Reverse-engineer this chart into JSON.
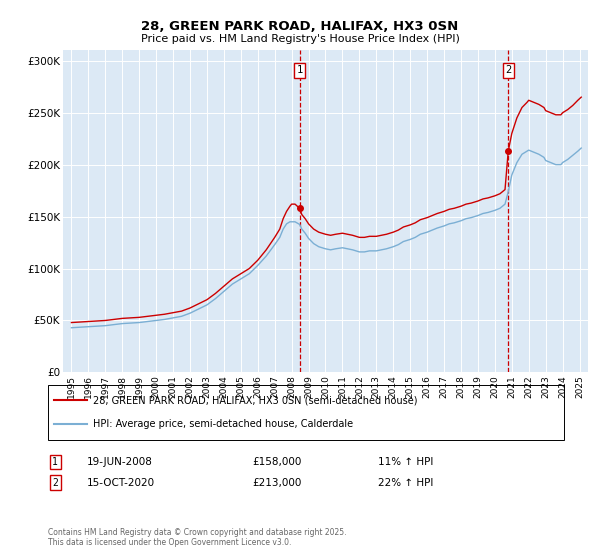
{
  "title": "28, GREEN PARK ROAD, HALIFAX, HX3 0SN",
  "subtitle": "Price paid vs. HM Land Registry's House Price Index (HPI)",
  "ylabel_ticks": [
    "£0",
    "£50K",
    "£100K",
    "£150K",
    "£200K",
    "£250K",
    "£300K"
  ],
  "ytick_values": [
    0,
    50000,
    100000,
    150000,
    200000,
    250000,
    300000
  ],
  "ylim": [
    0,
    310000
  ],
  "xlim_start": 1994.5,
  "xlim_end": 2025.5,
  "xtick_years": [
    1995,
    1996,
    1997,
    1998,
    1999,
    2000,
    2001,
    2002,
    2003,
    2004,
    2005,
    2006,
    2007,
    2008,
    2009,
    2010,
    2011,
    2012,
    2013,
    2014,
    2015,
    2016,
    2017,
    2018,
    2019,
    2020,
    2021,
    2022,
    2023,
    2024,
    2025
  ],
  "bg_color": "#dce9f5",
  "fig_bg": "#ffffff",
  "red_color": "#cc0000",
  "blue_color": "#7bafd4",
  "vline1_x": 2008.47,
  "vline2_x": 2020.79,
  "legend_line1": "28, GREEN PARK ROAD, HALIFAX, HX3 0SN (semi-detached house)",
  "legend_line2": "HPI: Average price, semi-detached house, Calderdale",
  "ann1_index": "1",
  "ann1_date": "19-JUN-2008",
  "ann1_price": "£158,000",
  "ann1_hpi": "11% ↑ HPI",
  "ann2_index": "2",
  "ann2_date": "15-OCT-2020",
  "ann2_price": "£213,000",
  "ann2_hpi": "22% ↑ HPI",
  "copyright_text": "Contains HM Land Registry data © Crown copyright and database right 2025.\nThis data is licensed under the Open Government Licence v3.0.",
  "red_series": [
    [
      1995.0,
      48000
    ],
    [
      1995.5,
      48500
    ],
    [
      1996.0,
      49000
    ],
    [
      1996.5,
      49500
    ],
    [
      1997.0,
      50000
    ],
    [
      1997.5,
      51000
    ],
    [
      1998.0,
      52000
    ],
    [
      1998.5,
      52500
    ],
    [
      1999.0,
      53000
    ],
    [
      1999.5,
      54000
    ],
    [
      2000.0,
      55000
    ],
    [
      2000.5,
      56000
    ],
    [
      2001.0,
      57500
    ],
    [
      2001.5,
      59000
    ],
    [
      2002.0,
      62000
    ],
    [
      2002.5,
      66000
    ],
    [
      2003.0,
      70000
    ],
    [
      2003.5,
      76000
    ],
    [
      2004.0,
      83000
    ],
    [
      2004.5,
      90000
    ],
    [
      2005.0,
      95000
    ],
    [
      2005.5,
      100000
    ],
    [
      2006.0,
      108000
    ],
    [
      2006.5,
      118000
    ],
    [
      2007.0,
      130000
    ],
    [
      2007.3,
      138000
    ],
    [
      2007.5,
      148000
    ],
    [
      2007.7,
      155000
    ],
    [
      2007.9,
      160000
    ],
    [
      2008.0,
      162000
    ],
    [
      2008.2,
      162000
    ],
    [
      2008.47,
      158000
    ],
    [
      2008.6,
      152000
    ],
    [
      2008.8,
      148000
    ],
    [
      2009.0,
      143000
    ],
    [
      2009.3,
      138000
    ],
    [
      2009.6,
      135000
    ],
    [
      2010.0,
      133000
    ],
    [
      2010.3,
      132000
    ],
    [
      2010.6,
      133000
    ],
    [
      2011.0,
      134000
    ],
    [
      2011.3,
      133000
    ],
    [
      2011.6,
      132000
    ],
    [
      2012.0,
      130000
    ],
    [
      2012.3,
      130000
    ],
    [
      2012.6,
      131000
    ],
    [
      2013.0,
      131000
    ],
    [
      2013.3,
      132000
    ],
    [
      2013.6,
      133000
    ],
    [
      2014.0,
      135000
    ],
    [
      2014.3,
      137000
    ],
    [
      2014.6,
      140000
    ],
    [
      2015.0,
      142000
    ],
    [
      2015.3,
      144000
    ],
    [
      2015.6,
      147000
    ],
    [
      2016.0,
      149000
    ],
    [
      2016.3,
      151000
    ],
    [
      2016.6,
      153000
    ],
    [
      2017.0,
      155000
    ],
    [
      2017.3,
      157000
    ],
    [
      2017.6,
      158000
    ],
    [
      2018.0,
      160000
    ],
    [
      2018.3,
      162000
    ],
    [
      2018.6,
      163000
    ],
    [
      2019.0,
      165000
    ],
    [
      2019.3,
      167000
    ],
    [
      2019.6,
      168000
    ],
    [
      2020.0,
      170000
    ],
    [
      2020.3,
      172000
    ],
    [
      2020.6,
      176000
    ],
    [
      2020.79,
      213000
    ],
    [
      2021.0,
      230000
    ],
    [
      2021.3,
      245000
    ],
    [
      2021.6,
      255000
    ],
    [
      2021.9,
      260000
    ],
    [
      2022.0,
      262000
    ],
    [
      2022.3,
      260000
    ],
    [
      2022.6,
      258000
    ],
    [
      2022.9,
      255000
    ],
    [
      2023.0,
      252000
    ],
    [
      2023.3,
      250000
    ],
    [
      2023.6,
      248000
    ],
    [
      2023.9,
      248000
    ],
    [
      2024.0,
      250000
    ],
    [
      2024.3,
      253000
    ],
    [
      2024.6,
      257000
    ],
    [
      2024.9,
      262000
    ],
    [
      2025.1,
      265000
    ]
  ],
  "blue_series": [
    [
      1995.0,
      43000
    ],
    [
      1995.5,
      43500
    ],
    [
      1996.0,
      44000
    ],
    [
      1996.5,
      44500
    ],
    [
      1997.0,
      45000
    ],
    [
      1997.5,
      46000
    ],
    [
      1998.0,
      47000
    ],
    [
      1998.5,
      47500
    ],
    [
      1999.0,
      48000
    ],
    [
      1999.5,
      49000
    ],
    [
      2000.0,
      50000
    ],
    [
      2000.5,
      51000
    ],
    [
      2001.0,
      52500
    ],
    [
      2001.5,
      54000
    ],
    [
      2002.0,
      57000
    ],
    [
      2002.5,
      61000
    ],
    [
      2003.0,
      65000
    ],
    [
      2003.5,
      71000
    ],
    [
      2004.0,
      78000
    ],
    [
      2004.5,
      85000
    ],
    [
      2005.0,
      90000
    ],
    [
      2005.5,
      95000
    ],
    [
      2006.0,
      103000
    ],
    [
      2006.5,
      112000
    ],
    [
      2007.0,
      123000
    ],
    [
      2007.3,
      130000
    ],
    [
      2007.5,
      138000
    ],
    [
      2007.7,
      143000
    ],
    [
      2007.9,
      145000
    ],
    [
      2008.0,
      145000
    ],
    [
      2008.2,
      145000
    ],
    [
      2008.47,
      142500
    ],
    [
      2008.6,
      138000
    ],
    [
      2008.8,
      134000
    ],
    [
      2009.0,
      129000
    ],
    [
      2009.3,
      124000
    ],
    [
      2009.6,
      121000
    ],
    [
      2010.0,
      119000
    ],
    [
      2010.3,
      118000
    ],
    [
      2010.6,
      119000
    ],
    [
      2011.0,
      120000
    ],
    [
      2011.3,
      119000
    ],
    [
      2011.6,
      118000
    ],
    [
      2012.0,
      116000
    ],
    [
      2012.3,
      116000
    ],
    [
      2012.6,
      117000
    ],
    [
      2013.0,
      117000
    ],
    [
      2013.3,
      118000
    ],
    [
      2013.6,
      119000
    ],
    [
      2014.0,
      121000
    ],
    [
      2014.3,
      123000
    ],
    [
      2014.6,
      126000
    ],
    [
      2015.0,
      128000
    ],
    [
      2015.3,
      130000
    ],
    [
      2015.6,
      133000
    ],
    [
      2016.0,
      135000
    ],
    [
      2016.3,
      137000
    ],
    [
      2016.6,
      139000
    ],
    [
      2017.0,
      141000
    ],
    [
      2017.3,
      143000
    ],
    [
      2017.6,
      144000
    ],
    [
      2018.0,
      146000
    ],
    [
      2018.3,
      148000
    ],
    [
      2018.6,
      149000
    ],
    [
      2019.0,
      151000
    ],
    [
      2019.3,
      153000
    ],
    [
      2019.6,
      154000
    ],
    [
      2020.0,
      156000
    ],
    [
      2020.3,
      158000
    ],
    [
      2020.6,
      162000
    ],
    [
      2020.79,
      174000
    ],
    [
      2021.0,
      190000
    ],
    [
      2021.3,
      202000
    ],
    [
      2021.6,
      210000
    ],
    [
      2021.9,
      213000
    ],
    [
      2022.0,
      214000
    ],
    [
      2022.3,
      212000
    ],
    [
      2022.6,
      210000
    ],
    [
      2022.9,
      207000
    ],
    [
      2023.0,
      204000
    ],
    [
      2023.3,
      202000
    ],
    [
      2023.6,
      200000
    ],
    [
      2023.9,
      200000
    ],
    [
      2024.0,
      202000
    ],
    [
      2024.3,
      205000
    ],
    [
      2024.6,
      209000
    ],
    [
      2024.9,
      213000
    ],
    [
      2025.1,
      216000
    ]
  ]
}
